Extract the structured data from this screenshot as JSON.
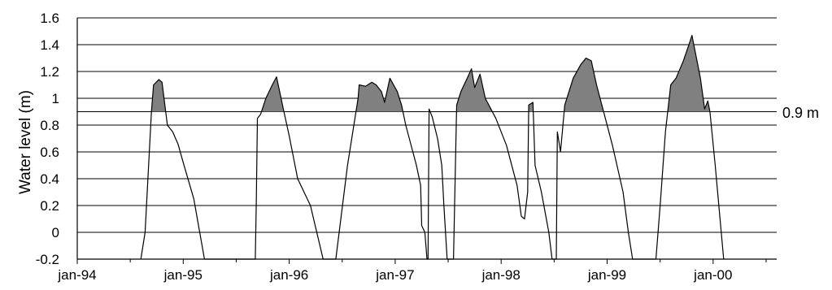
{
  "chart_data": {
    "type": "area",
    "title": "",
    "xlabel": "",
    "ylabel": "Water level (m)",
    "ylim": [
      -0.2,
      1.6
    ],
    "xlim": [
      0,
      6.6
    ],
    "y_ticks": [
      -0.2,
      0,
      0.2,
      0.4,
      0.6,
      0.8,
      1,
      1.2,
      1.4,
      1.6
    ],
    "y_tick_labels": [
      "-0.2",
      "0",
      "0.2",
      "0.4",
      "0.6",
      "0.8",
      "1",
      "1.2",
      "1.4",
      "1.6"
    ],
    "x_ticks": [
      0,
      1,
      2,
      3,
      4,
      5,
      6
    ],
    "x_tick_labels": [
      "jan-94",
      "jan-95",
      "jan-96",
      "jan-97",
      "jan-98",
      "jan-99",
      "jan-00"
    ],
    "x_units": "years since jan-94",
    "grid": "horizontal",
    "threshold": {
      "value": 0.9,
      "label": "0.9 m"
    },
    "shade_above_threshold": true,
    "colors": {
      "line": "#000000",
      "fill": "#808080",
      "grid": "#000000"
    },
    "series": [
      {
        "values_xy": [
          [
            0.6,
            -0.2
          ],
          [
            0.64,
            0.0
          ],
          [
            0.7,
            0.9
          ],
          [
            0.72,
            1.1
          ],
          [
            0.77,
            1.14
          ],
          [
            0.8,
            1.12
          ],
          [
            0.85,
            0.8
          ],
          [
            0.9,
            0.75
          ],
          [
            0.95,
            0.66
          ],
          [
            1.0,
            0.52
          ],
          [
            1.1,
            0.25
          ],
          [
            1.2,
            -0.2
          ],
          [
            1.68,
            -0.2
          ],
          [
            1.69,
            0.25
          ],
          [
            1.7,
            0.85
          ],
          [
            1.73,
            0.88
          ],
          [
            1.78,
            1.0
          ],
          [
            1.84,
            1.1
          ],
          [
            1.88,
            1.16
          ],
          [
            1.95,
            0.9
          ],
          [
            2.0,
            0.72
          ],
          [
            2.08,
            0.4
          ],
          [
            2.2,
            0.2
          ],
          [
            2.32,
            -0.2
          ],
          [
            2.44,
            -0.2
          ],
          [
            2.55,
            0.5
          ],
          [
            2.65,
            1.0
          ],
          [
            2.66,
            1.1
          ],
          [
            2.72,
            1.09
          ],
          [
            2.78,
            1.12
          ],
          [
            2.82,
            1.1
          ],
          [
            2.87,
            1.05
          ],
          [
            2.9,
            0.97
          ],
          [
            2.95,
            1.15
          ],
          [
            3.02,
            1.05
          ],
          [
            3.06,
            0.95
          ],
          [
            3.1,
            0.8
          ],
          [
            3.2,
            0.5
          ],
          [
            3.24,
            0.35
          ],
          [
            3.25,
            0.05
          ],
          [
            3.28,
            0.0
          ],
          [
            3.3,
            -0.2
          ],
          [
            3.31,
            -0.2
          ],
          [
            3.32,
            0.92
          ],
          [
            3.35,
            0.86
          ],
          [
            3.4,
            0.7
          ],
          [
            3.44,
            0.5
          ],
          [
            3.46,
            0.2
          ],
          [
            3.49,
            -0.2
          ],
          [
            3.55,
            -0.2
          ],
          [
            3.58,
            0.95
          ],
          [
            3.62,
            1.05
          ],
          [
            3.68,
            1.15
          ],
          [
            3.72,
            1.22
          ],
          [
            3.75,
            1.08
          ],
          [
            3.8,
            1.18
          ],
          [
            3.85,
            1.0
          ],
          [
            3.95,
            0.85
          ],
          [
            4.05,
            0.65
          ],
          [
            4.15,
            0.35
          ],
          [
            4.19,
            0.12
          ],
          [
            4.22,
            0.1
          ],
          [
            4.25,
            0.3
          ],
          [
            4.26,
            0.95
          ],
          [
            4.3,
            0.97
          ],
          [
            4.32,
            0.5
          ],
          [
            4.38,
            0.3
          ],
          [
            4.45,
            0.0
          ],
          [
            4.48,
            -0.2
          ],
          [
            4.52,
            -0.2
          ],
          [
            4.53,
            0.75
          ],
          [
            4.56,
            0.6
          ],
          [
            4.6,
            0.95
          ],
          [
            4.68,
            1.15
          ],
          [
            4.75,
            1.25
          ],
          [
            4.8,
            1.3
          ],
          [
            4.85,
            1.28
          ],
          [
            4.9,
            1.1
          ],
          [
            4.95,
            0.95
          ],
          [
            5.05,
            0.65
          ],
          [
            5.15,
            0.3
          ],
          [
            5.2,
            0.0
          ],
          [
            5.24,
            -0.2
          ],
          [
            5.46,
            -0.2
          ],
          [
            5.5,
            0.2
          ],
          [
            5.55,
            0.75
          ],
          [
            5.6,
            1.1
          ],
          [
            5.65,
            1.15
          ],
          [
            5.72,
            1.28
          ],
          [
            5.78,
            1.42
          ],
          [
            5.8,
            1.47
          ],
          [
            5.83,
            1.35
          ],
          [
            5.88,
            1.15
          ],
          [
            5.92,
            0.92
          ],
          [
            5.95,
            0.98
          ],
          [
            5.97,
            0.9
          ],
          [
            6.02,
            0.5
          ],
          [
            6.1,
            -0.2
          ]
        ]
      }
    ]
  }
}
